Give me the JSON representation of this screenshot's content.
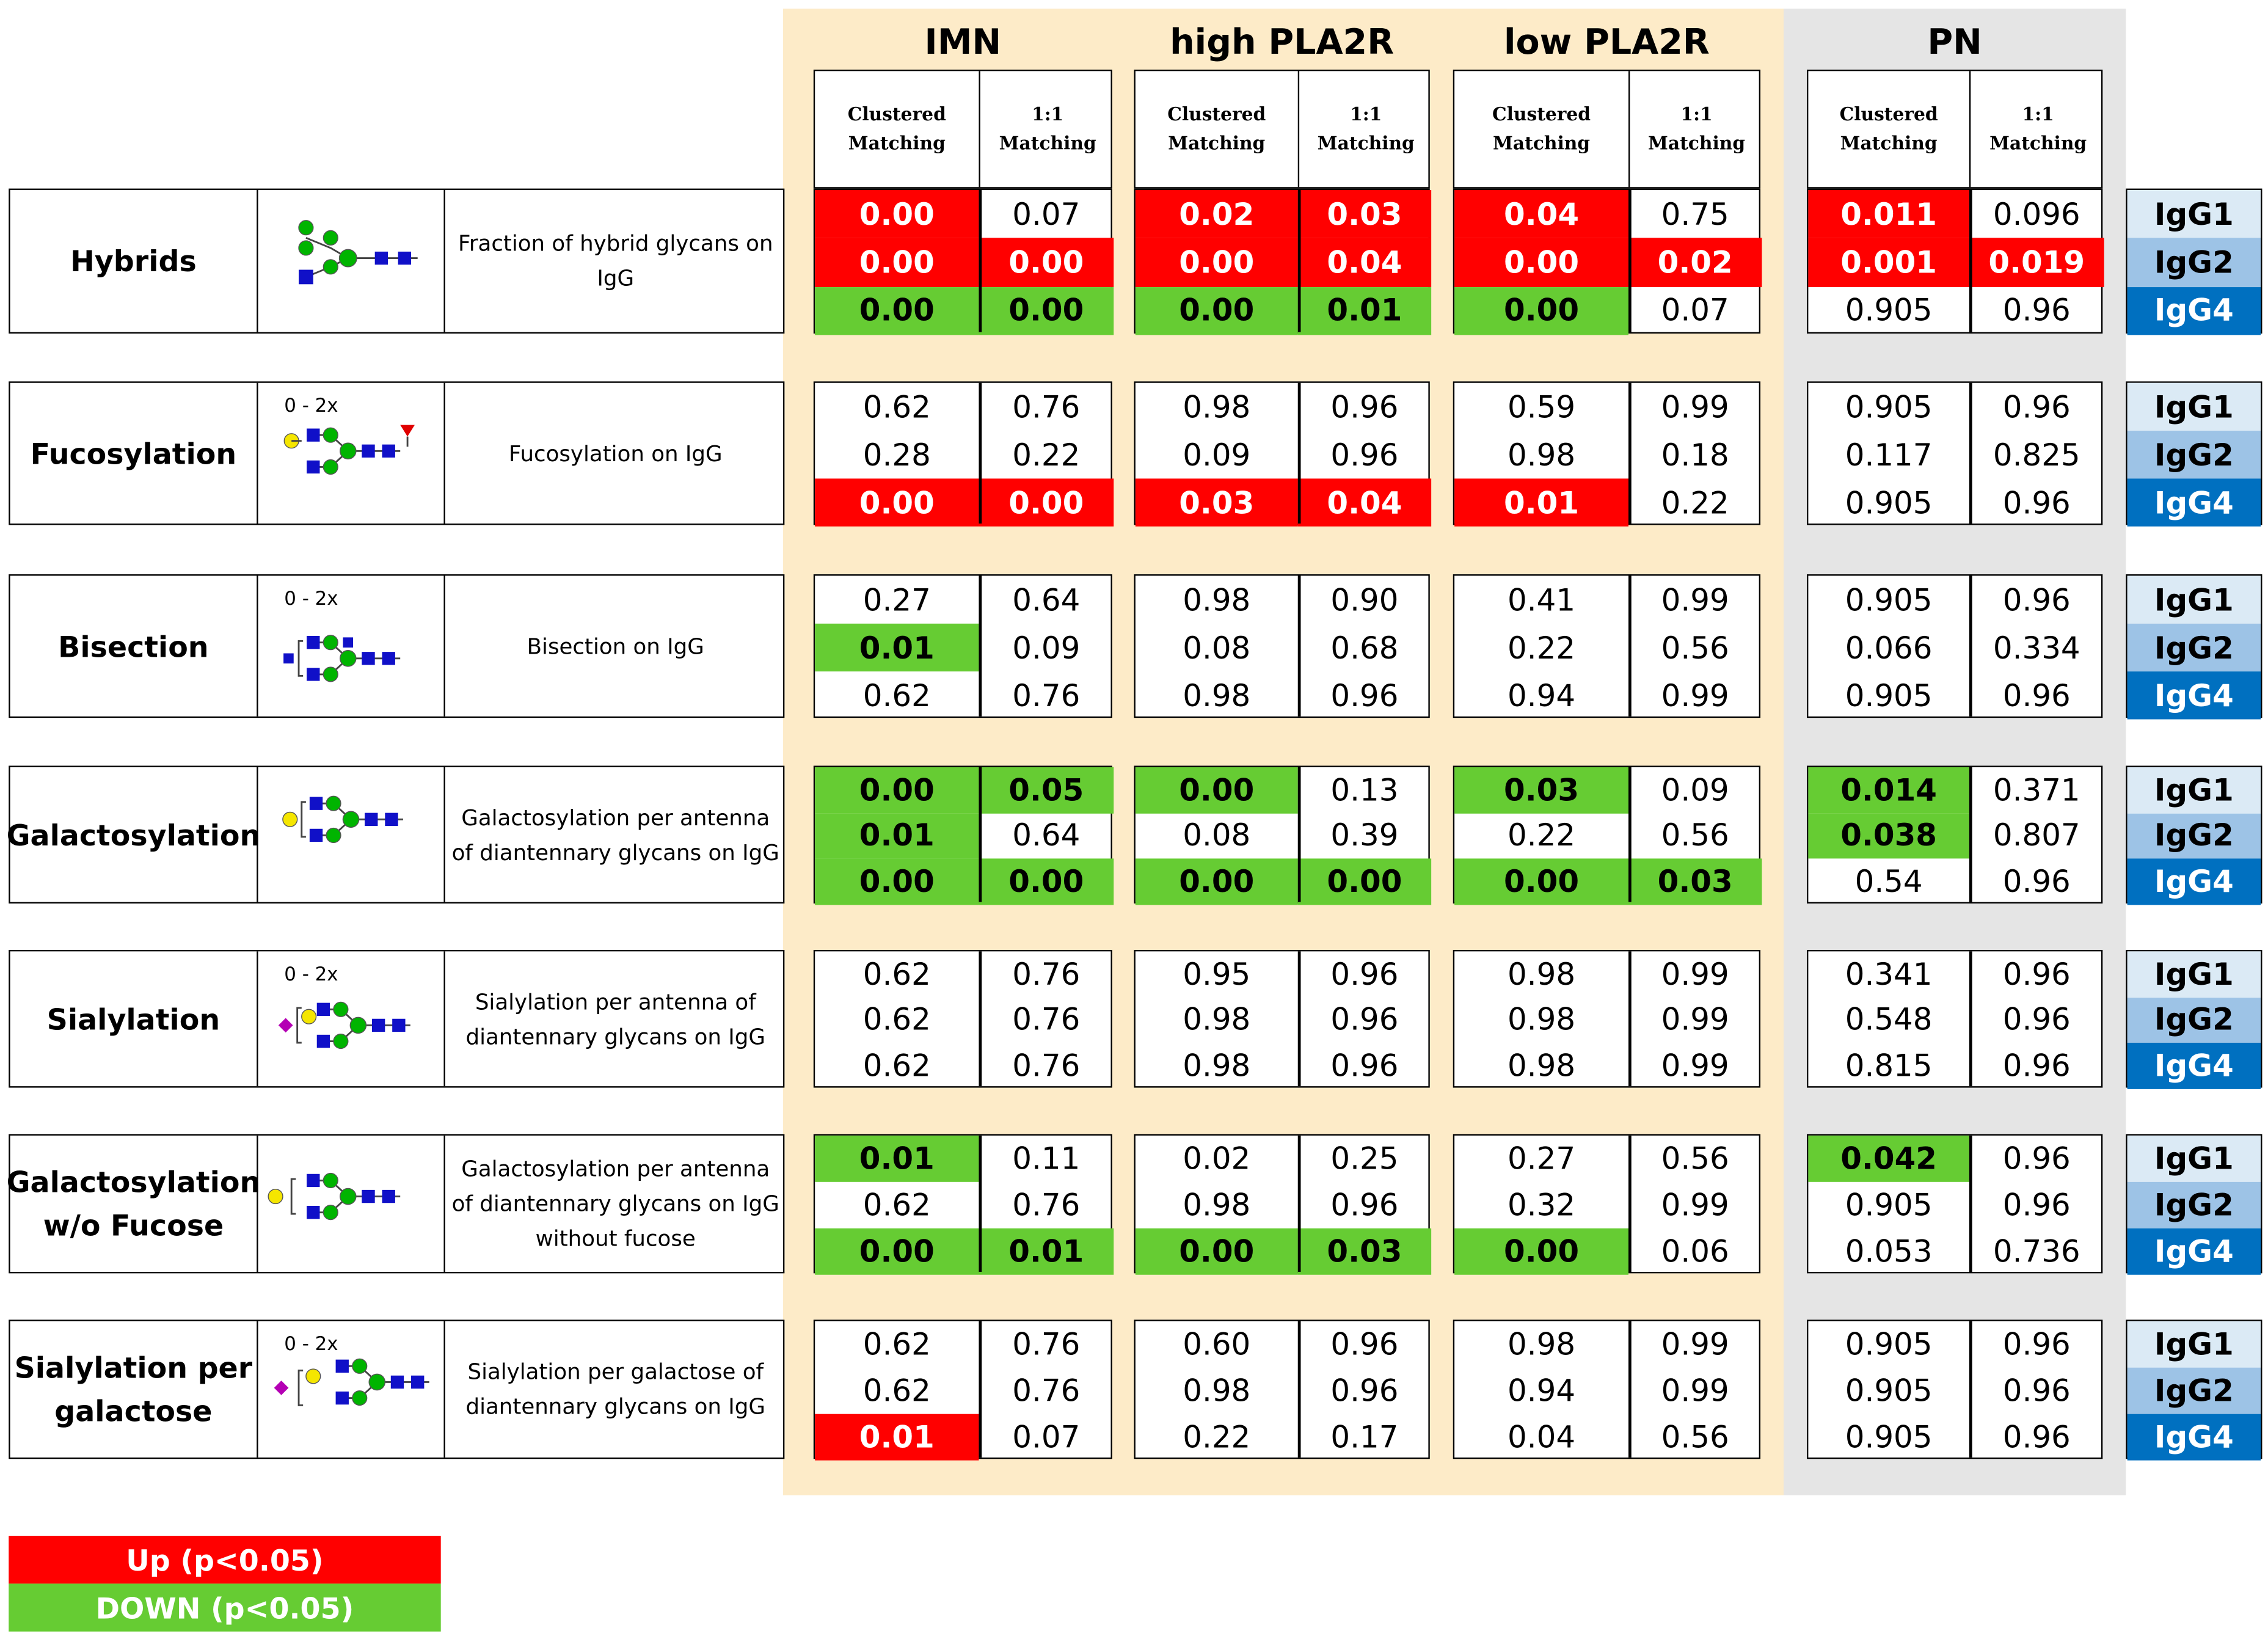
{
  "groups": [
    "IMN",
    "high PLA2R",
    "low PLA2R",
    "PN"
  ],
  "subheaders": [
    "Clustered\nMatching",
    "1:1 Matching"
  ],
  "isotypes": [
    "IgG1",
    "IgG2",
    "IgG4"
  ],
  "isotype_colors": [
    "#dbeaf5",
    "#9dc3e6",
    "#0070c0"
  ],
  "colors": {
    "up": "#ff0000",
    "down": "#66cc33",
    "imn_bg": "#fdebc8",
    "pn_bg": "#e5e5e5"
  },
  "legend": {
    "up": "Up (p<0.05)",
    "down": "DOWN (p<0.05)"
  },
  "rows": [
    {
      "name": "Hybrids",
      "icon_label": "",
      "icon": "hybrid-glycan-icon",
      "description": "Fraction of hybrid glycans on IgG",
      "values": [
        [
          [
            "0.00",
            "up"
          ],
          [
            "0.07",
            ""
          ],
          [
            "0.02",
            "up"
          ],
          [
            "0.03",
            "up"
          ],
          [
            "0.04",
            "up"
          ],
          [
            "0.75",
            ""
          ],
          [
            "0.011",
            "up"
          ],
          [
            "0.096",
            ""
          ]
        ],
        [
          [
            "0.00",
            "up"
          ],
          [
            "0.00",
            "up"
          ],
          [
            "0.00",
            "up"
          ],
          [
            "0.04",
            "up"
          ],
          [
            "0.00",
            "up"
          ],
          [
            "0.02",
            "up"
          ],
          [
            "0.001",
            "up"
          ],
          [
            "0.019",
            "up"
          ]
        ],
        [
          [
            "0.00",
            "down"
          ],
          [
            "0.00",
            "down"
          ],
          [
            "0.00",
            "down"
          ],
          [
            "0.01",
            "down"
          ],
          [
            "0.00",
            "down"
          ],
          [
            "0.07",
            ""
          ],
          [
            "0.905",
            ""
          ],
          [
            "0.96",
            ""
          ]
        ]
      ]
    },
    {
      "name": "Fucosylation",
      "icon_label": "0 - 2x",
      "icon": "fucosylated-glycan-icon",
      "description": "Fucosylation on IgG",
      "values": [
        [
          [
            "0.62",
            ""
          ],
          [
            "0.76",
            ""
          ],
          [
            "0.98",
            ""
          ],
          [
            "0.96",
            ""
          ],
          [
            "0.59",
            ""
          ],
          [
            "0.99",
            ""
          ],
          [
            "0.905",
            ""
          ],
          [
            "0.96",
            ""
          ]
        ],
        [
          [
            "0.28",
            ""
          ],
          [
            "0.22",
            ""
          ],
          [
            "0.09",
            ""
          ],
          [
            "0.96",
            ""
          ],
          [
            "0.98",
            ""
          ],
          [
            "0.18",
            ""
          ],
          [
            "0.117",
            ""
          ],
          [
            "0.825",
            ""
          ]
        ],
        [
          [
            "0.00",
            "up"
          ],
          [
            "0.00",
            "up"
          ],
          [
            "0.03",
            "up"
          ],
          [
            "0.04",
            "up"
          ],
          [
            "0.01",
            "up"
          ],
          [
            "0.22",
            ""
          ],
          [
            "0.905",
            ""
          ],
          [
            "0.96",
            ""
          ]
        ]
      ]
    },
    {
      "name": "Bisection",
      "icon_label": "0 - 2x",
      "icon": "bisected-glycan-icon",
      "description": "Bisection on IgG",
      "values": [
        [
          [
            "0.27",
            ""
          ],
          [
            "0.64",
            ""
          ],
          [
            "0.98",
            ""
          ],
          [
            "0.90",
            ""
          ],
          [
            "0.41",
            ""
          ],
          [
            "0.99",
            ""
          ],
          [
            "0.905",
            ""
          ],
          [
            "0.96",
            ""
          ]
        ],
        [
          [
            "0.01",
            "down"
          ],
          [
            "0.09",
            ""
          ],
          [
            "0.08",
            ""
          ],
          [
            "0.68",
            ""
          ],
          [
            "0.22",
            ""
          ],
          [
            "0.56",
            ""
          ],
          [
            "0.066",
            ""
          ],
          [
            "0.334",
            ""
          ]
        ],
        [
          [
            "0.62",
            ""
          ],
          [
            "0.76",
            ""
          ],
          [
            "0.98",
            ""
          ],
          [
            "0.96",
            ""
          ],
          [
            "0.94",
            ""
          ],
          [
            "0.99",
            ""
          ],
          [
            "0.905",
            ""
          ],
          [
            "0.96",
            ""
          ]
        ]
      ]
    },
    {
      "name": "Galactosylation",
      "icon_label": "",
      "icon": "galactosylated-glycan-icon",
      "description": "Galactosylation per antenna of diantennary glycans on IgG",
      "values": [
        [
          [
            "0.00",
            "down"
          ],
          [
            "0.05",
            "down"
          ],
          [
            "0.00",
            "down"
          ],
          [
            "0.13",
            ""
          ],
          [
            "0.03",
            "down"
          ],
          [
            "0.09",
            ""
          ],
          [
            "0.014",
            "down"
          ],
          [
            "0.371",
            ""
          ]
        ],
        [
          [
            "0.01",
            "down"
          ],
          [
            "0.64",
            ""
          ],
          [
            "0.08",
            ""
          ],
          [
            "0.39",
            ""
          ],
          [
            "0.22",
            ""
          ],
          [
            "0.56",
            ""
          ],
          [
            "0.038",
            "down"
          ],
          [
            "0.807",
            ""
          ]
        ],
        [
          [
            "0.00",
            "down"
          ],
          [
            "0.00",
            "down"
          ],
          [
            "0.00",
            "down"
          ],
          [
            "0.00",
            "down"
          ],
          [
            "0.00",
            "down"
          ],
          [
            "0.03",
            "down"
          ],
          [
            "0.54",
            ""
          ],
          [
            "0.96",
            ""
          ]
        ]
      ]
    },
    {
      "name": "Sialylation",
      "icon_label": "0 - 2x",
      "icon": "sialylated-glycan-icon",
      "description": "Sialylation per antenna of diantennary glycans on IgG",
      "values": [
        [
          [
            "0.62",
            ""
          ],
          [
            "0.76",
            ""
          ],
          [
            "0.95",
            ""
          ],
          [
            "0.96",
            ""
          ],
          [
            "0.98",
            ""
          ],
          [
            "0.99",
            ""
          ],
          [
            "0.341",
            ""
          ],
          [
            "0.96",
            ""
          ]
        ],
        [
          [
            "0.62",
            ""
          ],
          [
            "0.76",
            ""
          ],
          [
            "0.98",
            ""
          ],
          [
            "0.96",
            ""
          ],
          [
            "0.98",
            ""
          ],
          [
            "0.99",
            ""
          ],
          [
            "0.548",
            ""
          ],
          [
            "0.96",
            ""
          ]
        ],
        [
          [
            "0.62",
            ""
          ],
          [
            "0.76",
            ""
          ],
          [
            "0.98",
            ""
          ],
          [
            "0.96",
            ""
          ],
          [
            "0.98",
            ""
          ],
          [
            "0.99",
            ""
          ],
          [
            "0.815",
            ""
          ],
          [
            "0.96",
            ""
          ]
        ]
      ]
    },
    {
      "name": "Galactosylation\nw/o Fucose",
      "icon_label": "",
      "icon": "galactosylated-afucosylated-glycan-icon",
      "description": "Galactosylation per antenna of diantennary glycans on IgG without fucose",
      "values": [
        [
          [
            "0.01",
            "down"
          ],
          [
            "0.11",
            ""
          ],
          [
            "0.02",
            ""
          ],
          [
            "0.25",
            ""
          ],
          [
            "0.27",
            ""
          ],
          [
            "0.56",
            ""
          ],
          [
            "0.042",
            "down"
          ],
          [
            "0.96",
            ""
          ]
        ],
        [
          [
            "0.62",
            ""
          ],
          [
            "0.76",
            ""
          ],
          [
            "0.98",
            ""
          ],
          [
            "0.96",
            ""
          ],
          [
            "0.32",
            ""
          ],
          [
            "0.99",
            ""
          ],
          [
            "0.905",
            ""
          ],
          [
            "0.96",
            ""
          ]
        ],
        [
          [
            "0.00",
            "down"
          ],
          [
            "0.01",
            "down"
          ],
          [
            "0.00",
            "down"
          ],
          [
            "0.03",
            "down"
          ],
          [
            "0.00",
            "down"
          ],
          [
            "0.06",
            ""
          ],
          [
            "0.053",
            ""
          ],
          [
            "0.736",
            ""
          ]
        ]
      ]
    },
    {
      "name": "Sialylation per\ngalactose",
      "icon_label": "0 - 2x",
      "icon": "sialylated-per-galactose-glycan-icon",
      "description": "Sialylation per galactose of diantennary glycans on IgG",
      "values": [
        [
          [
            "0.62",
            ""
          ],
          [
            "0.76",
            ""
          ],
          [
            "0.60",
            ""
          ],
          [
            "0.96",
            ""
          ],
          [
            "0.98",
            ""
          ],
          [
            "0.99",
            ""
          ],
          [
            "0.905",
            ""
          ],
          [
            "0.96",
            ""
          ]
        ],
        [
          [
            "0.62",
            ""
          ],
          [
            "0.76",
            ""
          ],
          [
            "0.98",
            ""
          ],
          [
            "0.96",
            ""
          ],
          [
            "0.94",
            ""
          ],
          [
            "0.99",
            ""
          ],
          [
            "0.905",
            ""
          ],
          [
            "0.96",
            ""
          ]
        ],
        [
          [
            "0.01",
            "up"
          ],
          [
            "0.07",
            ""
          ],
          [
            "0.22",
            ""
          ],
          [
            "0.17",
            ""
          ],
          [
            "0.04",
            ""
          ],
          [
            "0.56",
            ""
          ],
          [
            "0.905",
            ""
          ],
          [
            "0.96",
            ""
          ]
        ]
      ]
    }
  ]
}
